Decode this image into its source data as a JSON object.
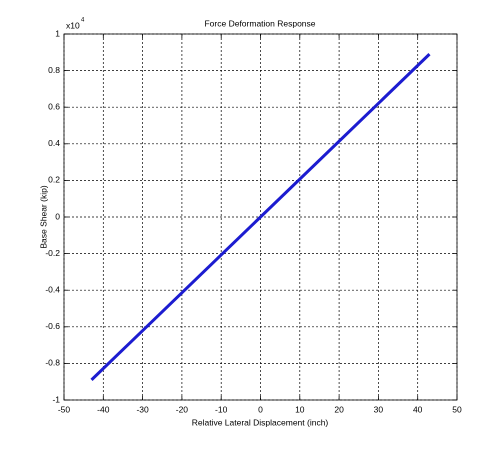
{
  "chart_data": {
    "type": "line",
    "title": "Force Deformation Response",
    "x_label": "Relative Lateral Displacement (inch)",
    "y_label": "Base Shear (kip)",
    "y_multiplier": "x10",
    "y_multiplier_exponent": "4",
    "x": [
      -43,
      0,
      43
    ],
    "series": [
      {
        "name": "Base Shear",
        "color": "#1c1cd0",
        "values": [
          -0.89,
          0,
          0.89
        ]
      }
    ],
    "xlim": [
      -50,
      50
    ],
    "xticks": [
      -50,
      -40,
      -30,
      -20,
      -10,
      0,
      10,
      20,
      30,
      40,
      50
    ],
    "ylim": [
      -1,
      1
    ],
    "yticks": [
      -1,
      -0.8,
      -0.6,
      -0.4,
      -0.2,
      0,
      0.2,
      0.4,
      0.6,
      0.8,
      1
    ],
    "grid": true
  }
}
